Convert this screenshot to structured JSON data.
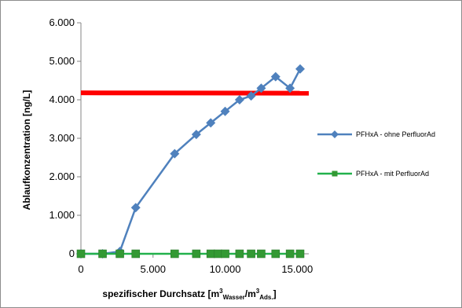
{
  "chart_data": {
    "type": "line",
    "xlabel": {
      "prefix": "spezifischer Durchsatz  [m",
      "sup1": "3",
      "sub1": "Wasser",
      "mid": "/m",
      "sup2": "3",
      "sub2": "Ads.",
      "suffix": "]"
    },
    "ylabel": "Ablaufkonzentration  [ng/L]",
    "xlim": [
      0,
      15800
    ],
    "ylim": [
      0,
      6000
    ],
    "x_ticks": [
      {
        "value": 0,
        "label": "0"
      },
      {
        "value": 5000,
        "label": "5.000"
      },
      {
        "value": 10000,
        "label": "10.000"
      },
      {
        "value": 15000,
        "label": "15.000"
      }
    ],
    "y_ticks": [
      {
        "value": 0,
        "label": "0"
      },
      {
        "value": 1000,
        "label": "1.000"
      },
      {
        "value": 2000,
        "label": "2.000"
      },
      {
        "value": 3000,
        "label": "3.000"
      },
      {
        "value": 4000,
        "label": "4.000"
      },
      {
        "value": 5000,
        "label": "5.000"
      },
      {
        "value": 6000,
        "label": "6.000"
      }
    ],
    "grid": false,
    "legend_position": "right",
    "threshold": {
      "y": 4180,
      "y_end": 4170,
      "color": "#ff0000"
    },
    "series": [
      {
        "name": "PFHxA - ohne PerfluorAd",
        "color": "#4f81bd",
        "marker": "diamond",
        "x": [
          0,
          1500,
          2700,
          3800,
          6500,
          8000,
          9000,
          10000,
          11000,
          11800,
          12500,
          13500,
          14500,
          15200
        ],
        "y": [
          0,
          0,
          60,
          1200,
          2600,
          3100,
          3400,
          3700,
          4000,
          4100,
          4300,
          4600,
          4300,
          4800
        ]
      },
      {
        "name": "PFHxA - mit PerfluorAd",
        "color": "#22b14c",
        "marker_color": "#339933",
        "marker": "square",
        "x": [
          0,
          1500,
          2700,
          3800,
          6500,
          8000,
          9000,
          9500,
          10000,
          11000,
          11800,
          12500,
          13500,
          14500,
          15200
        ],
        "y": [
          0,
          0,
          0,
          0,
          0,
          0,
          0,
          0,
          0,
          0,
          0,
          0,
          0,
          0,
          0
        ]
      }
    ]
  }
}
